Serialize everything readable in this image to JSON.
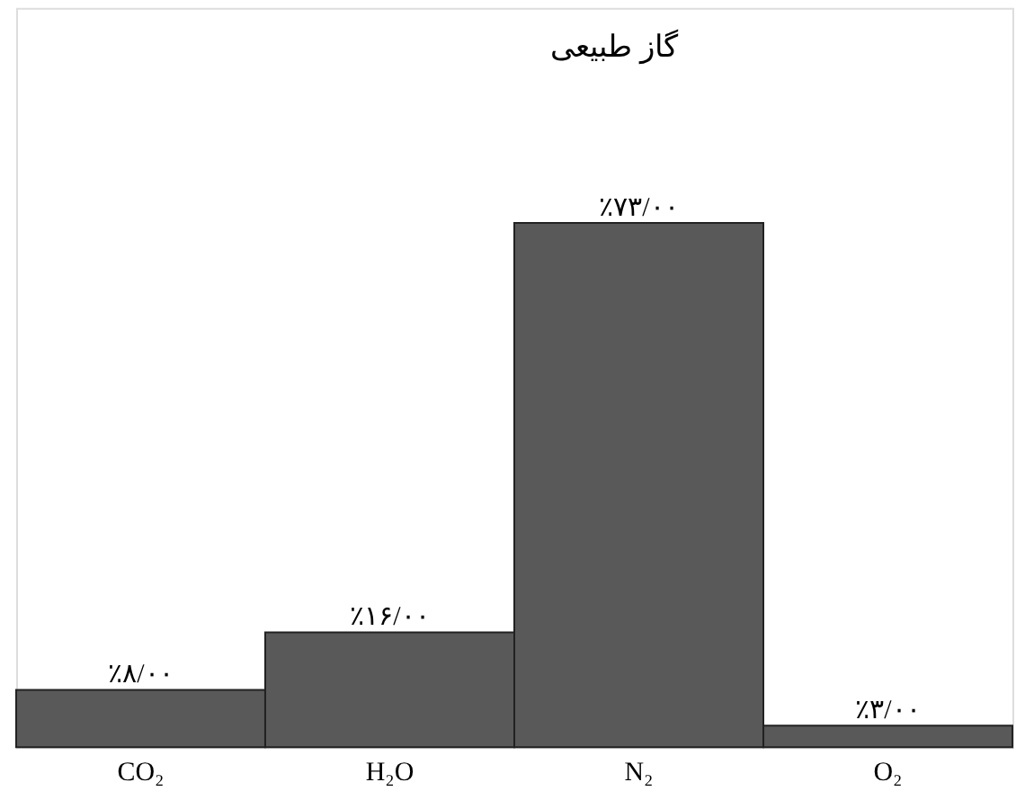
{
  "chart_data": {
    "type": "bar",
    "title": "گاز طبیعی",
    "categories": [
      "CO₂",
      "H₂O",
      "N₂",
      "O₂"
    ],
    "values": [
      8,
      16,
      73,
      3
    ],
    "value_labels": [
      "٪۸/۰۰",
      "٪۱۶/۰۰",
      "٪۷۳/۰۰",
      "٪۳/۰۰"
    ],
    "color": "#595959"
  }
}
